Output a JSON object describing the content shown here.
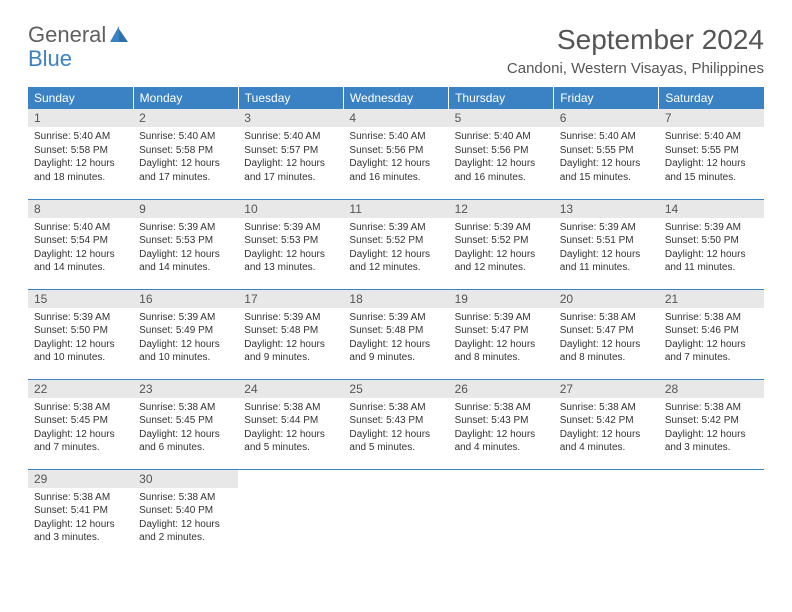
{
  "brand": {
    "word1": "General",
    "word2": "Blue"
  },
  "title": "September 2024",
  "location": "Candoni, Western Visayas, Philippines",
  "colors": {
    "header_bg": "#3b82c4",
    "header_text": "#ffffff",
    "daynum_bg": "#e8e8e8",
    "text": "#333333",
    "title_text": "#555555",
    "row_divider": "#3b82c4"
  },
  "day_headers": [
    "Sunday",
    "Monday",
    "Tuesday",
    "Wednesday",
    "Thursday",
    "Friday",
    "Saturday"
  ],
  "weeks": [
    [
      {
        "n": "1",
        "sr": "5:40 AM",
        "ss": "5:58 PM",
        "dl": "12 hours and 18 minutes."
      },
      {
        "n": "2",
        "sr": "5:40 AM",
        "ss": "5:58 PM",
        "dl": "12 hours and 17 minutes."
      },
      {
        "n": "3",
        "sr": "5:40 AM",
        "ss": "5:57 PM",
        "dl": "12 hours and 17 minutes."
      },
      {
        "n": "4",
        "sr": "5:40 AM",
        "ss": "5:56 PM",
        "dl": "12 hours and 16 minutes."
      },
      {
        "n": "5",
        "sr": "5:40 AM",
        "ss": "5:56 PM",
        "dl": "12 hours and 16 minutes."
      },
      {
        "n": "6",
        "sr": "5:40 AM",
        "ss": "5:55 PM",
        "dl": "12 hours and 15 minutes."
      },
      {
        "n": "7",
        "sr": "5:40 AM",
        "ss": "5:55 PM",
        "dl": "12 hours and 15 minutes."
      }
    ],
    [
      {
        "n": "8",
        "sr": "5:40 AM",
        "ss": "5:54 PM",
        "dl": "12 hours and 14 minutes."
      },
      {
        "n": "9",
        "sr": "5:39 AM",
        "ss": "5:53 PM",
        "dl": "12 hours and 14 minutes."
      },
      {
        "n": "10",
        "sr": "5:39 AM",
        "ss": "5:53 PM",
        "dl": "12 hours and 13 minutes."
      },
      {
        "n": "11",
        "sr": "5:39 AM",
        "ss": "5:52 PM",
        "dl": "12 hours and 12 minutes."
      },
      {
        "n": "12",
        "sr": "5:39 AM",
        "ss": "5:52 PM",
        "dl": "12 hours and 12 minutes."
      },
      {
        "n": "13",
        "sr": "5:39 AM",
        "ss": "5:51 PM",
        "dl": "12 hours and 11 minutes."
      },
      {
        "n": "14",
        "sr": "5:39 AM",
        "ss": "5:50 PM",
        "dl": "12 hours and 11 minutes."
      }
    ],
    [
      {
        "n": "15",
        "sr": "5:39 AM",
        "ss": "5:50 PM",
        "dl": "12 hours and 10 minutes."
      },
      {
        "n": "16",
        "sr": "5:39 AM",
        "ss": "5:49 PM",
        "dl": "12 hours and 10 minutes."
      },
      {
        "n": "17",
        "sr": "5:39 AM",
        "ss": "5:48 PM",
        "dl": "12 hours and 9 minutes."
      },
      {
        "n": "18",
        "sr": "5:39 AM",
        "ss": "5:48 PM",
        "dl": "12 hours and 9 minutes."
      },
      {
        "n": "19",
        "sr": "5:39 AM",
        "ss": "5:47 PM",
        "dl": "12 hours and 8 minutes."
      },
      {
        "n": "20",
        "sr": "5:38 AM",
        "ss": "5:47 PM",
        "dl": "12 hours and 8 minutes."
      },
      {
        "n": "21",
        "sr": "5:38 AM",
        "ss": "5:46 PM",
        "dl": "12 hours and 7 minutes."
      }
    ],
    [
      {
        "n": "22",
        "sr": "5:38 AM",
        "ss": "5:45 PM",
        "dl": "12 hours and 7 minutes."
      },
      {
        "n": "23",
        "sr": "5:38 AM",
        "ss": "5:45 PM",
        "dl": "12 hours and 6 minutes."
      },
      {
        "n": "24",
        "sr": "5:38 AM",
        "ss": "5:44 PM",
        "dl": "12 hours and 5 minutes."
      },
      {
        "n": "25",
        "sr": "5:38 AM",
        "ss": "5:43 PM",
        "dl": "12 hours and 5 minutes."
      },
      {
        "n": "26",
        "sr": "5:38 AM",
        "ss": "5:43 PM",
        "dl": "12 hours and 4 minutes."
      },
      {
        "n": "27",
        "sr": "5:38 AM",
        "ss": "5:42 PM",
        "dl": "12 hours and 4 minutes."
      },
      {
        "n": "28",
        "sr": "5:38 AM",
        "ss": "5:42 PM",
        "dl": "12 hours and 3 minutes."
      }
    ],
    [
      {
        "n": "29",
        "sr": "5:38 AM",
        "ss": "5:41 PM",
        "dl": "12 hours and 3 minutes."
      },
      {
        "n": "30",
        "sr": "5:38 AM",
        "ss": "5:40 PM",
        "dl": "12 hours and 2 minutes."
      },
      null,
      null,
      null,
      null,
      null
    ]
  ],
  "labels": {
    "sunrise": "Sunrise:",
    "sunset": "Sunset:",
    "daylight": "Daylight:"
  }
}
